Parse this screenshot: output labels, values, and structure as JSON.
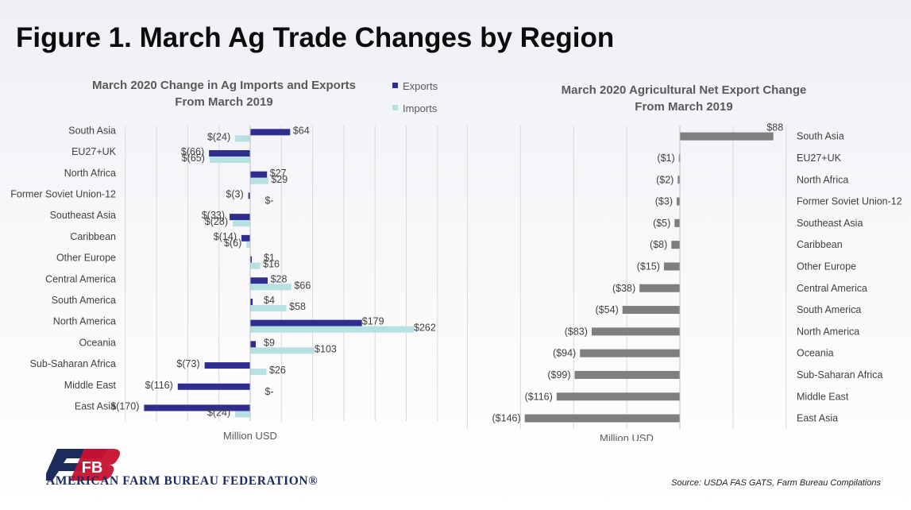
{
  "page": {
    "title": "Figure 1. March Ag Trade Changes by Region",
    "source": "Source: USDA FAS GATS, Farm Bureau Compilations",
    "org_name": "AMERICAN FARM BUREAU FEDERATION®",
    "logo_text": "FB"
  },
  "colors": {
    "exports": "#2e2e8f",
    "imports": "#b7e0e3",
    "net": "#7f7f7f",
    "grid": "#d9d9d9"
  },
  "chart_data": [
    {
      "type": "bar",
      "orientation": "horizontal",
      "title": "March 2020 Change in Ag Imports and Exports From March 2019",
      "title_lines": [
        "March 2020 Change in Ag Imports and Exports",
        "From March 2019"
      ],
      "xlabel": "Million USD",
      "legend_position": "top-right",
      "grid": true,
      "xlim": [
        -200,
        300
      ],
      "categories": [
        "South Asia",
        "EU27+UK",
        "North Africa",
        "Former Soviet Union-12",
        "Southeast Asia",
        "Caribbean",
        "Other Europe",
        "Central America",
        "South America",
        "North America",
        "Oceania",
        "Sub-Saharan Africa",
        "Middle East",
        "East Asia"
      ],
      "series": [
        {
          "name": "Exports",
          "values": [
            64,
            -66,
            27,
            -3,
            -33,
            -14,
            1,
            28,
            4,
            179,
            9,
            -73,
            -116,
            -170
          ],
          "labels": [
            "$64",
            "$(66)",
            "$27",
            "$(3)",
            "$(33)",
            "$(14)",
            "$1",
            "$28",
            "$4",
            "$179",
            "$9",
            "$(73)",
            "$(116)",
            "$(170)"
          ]
        },
        {
          "name": "Imports",
          "values": [
            -24,
            -65,
            29,
            0,
            -28,
            -6,
            16,
            66,
            58,
            262,
            103,
            26,
            0,
            -24
          ],
          "labels": [
            "$(24)",
            "$(65)",
            "$29",
            "$-",
            "$(28)",
            "$(6)",
            "$16",
            "$66",
            "$58",
            "$262",
            "$103",
            "$26",
            "$-",
            "$(24)"
          ]
        }
      ]
    },
    {
      "type": "bar",
      "orientation": "horizontal",
      "title": "March 2020 Agricultural Net Export Change From March 2019",
      "title_lines": [
        "March 2020 Agricultural Net Export Change",
        "From March 2019"
      ],
      "xlabel": "Million USD",
      "grid": true,
      "xlim": [
        -200,
        100
      ],
      "categories": [
        "South Asia",
        "EU27+UK",
        "North Africa",
        "Former Soviet Union-12",
        "Southeast Asia",
        "Caribbean",
        "Other Europe",
        "Central America",
        "South America",
        "North America",
        "Oceania",
        "Sub-Saharan Africa",
        "Middle East",
        "East Asia"
      ],
      "values": [
        88,
        -1,
        -2,
        -3,
        -5,
        -8,
        -15,
        -38,
        -54,
        -83,
        -94,
        -99,
        -116,
        -146
      ],
      "labels": [
        "$88",
        "($1)",
        "($2)",
        "($3)",
        "($5)",
        "($8)",
        "($15)",
        "($38)",
        "($54)",
        "($83)",
        "($94)",
        "($99)",
        "($116)",
        "($146)"
      ]
    }
  ]
}
